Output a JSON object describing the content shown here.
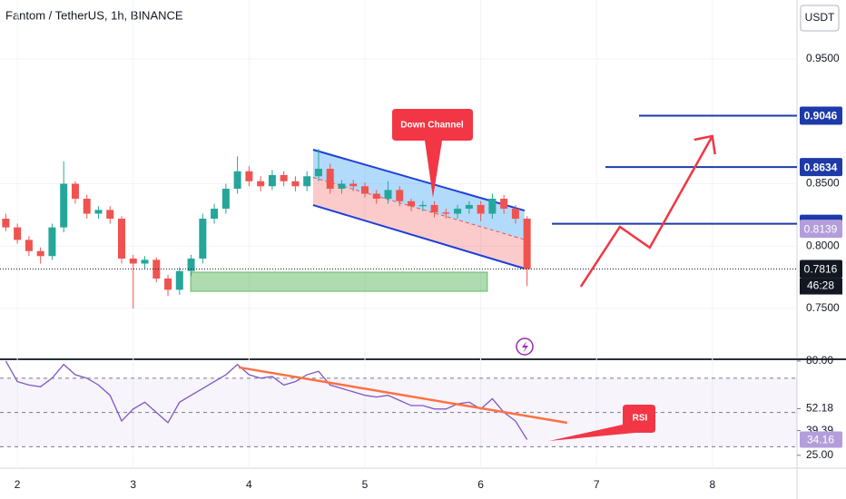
{
  "chart_data": [
    {
      "type": "candlestick",
      "title": "Fantom / TetherUS, 1h, BINANCE",
      "currency": "USDT",
      "x": [
        1.9,
        2.0,
        2.1,
        2.2,
        2.3,
        2.4,
        2.5,
        2.6,
        2.7,
        2.8,
        2.9,
        3.0,
        3.1,
        3.2,
        3.3,
        3.4,
        3.5,
        3.6,
        3.7,
        3.8,
        3.9,
        4.0,
        4.1,
        4.2,
        4.3,
        4.4,
        4.5,
        4.6,
        4.7,
        4.8,
        4.9,
        5.0,
        5.1,
        5.2,
        5.3,
        5.4,
        5.5,
        5.6,
        5.7,
        5.8,
        5.9,
        6.0,
        6.1,
        6.2,
        6.3,
        6.4
      ],
      "open": [
        0.822,
        0.815,
        0.805,
        0.796,
        0.792,
        0.815,
        0.85,
        0.838,
        0.826,
        0.829,
        0.822,
        0.79,
        0.786,
        0.789,
        0.774,
        0.765,
        0.78,
        0.79,
        0.822,
        0.83,
        0.846,
        0.86,
        0.852,
        0.848,
        0.857,
        0.852,
        0.848,
        0.856,
        0.862,
        0.846,
        0.85,
        0.848,
        0.842,
        0.838,
        0.845,
        0.836,
        0.832,
        0.833,
        0.827,
        0.826,
        0.83,
        0.833,
        0.826,
        0.838,
        0.83,
        0.822
      ],
      "high": [
        0.826,
        0.818,
        0.808,
        0.799,
        0.818,
        0.868,
        0.852,
        0.841,
        0.832,
        0.832,
        0.824,
        0.793,
        0.792,
        0.791,
        0.777,
        0.783,
        0.793,
        0.826,
        0.834,
        0.85,
        0.872,
        0.864,
        0.856,
        0.861,
        0.86,
        0.856,
        0.86,
        0.878,
        0.866,
        0.853,
        0.853,
        0.851,
        0.845,
        0.852,
        0.848,
        0.838,
        0.836,
        0.836,
        0.83,
        0.833,
        0.836,
        0.836,
        0.842,
        0.841,
        0.833,
        0.824
      ],
      "low": [
        0.812,
        0.802,
        0.792,
        0.786,
        0.789,
        0.811,
        0.834,
        0.822,
        0.822,
        0.818,
        0.786,
        0.75,
        0.782,
        0.771,
        0.76,
        0.761,
        0.776,
        0.786,
        0.818,
        0.826,
        0.842,
        0.848,
        0.844,
        0.845,
        0.848,
        0.844,
        0.844,
        0.852,
        0.842,
        0.842,
        0.844,
        0.839,
        0.834,
        0.834,
        0.832,
        0.828,
        0.828,
        0.823,
        0.822,
        0.822,
        0.826,
        0.82,
        0.822,
        0.826,
        0.818,
        0.768
      ],
      "close": [
        0.815,
        0.805,
        0.796,
        0.792,
        0.815,
        0.85,
        0.838,
        0.826,
        0.829,
        0.822,
        0.79,
        0.786,
        0.789,
        0.774,
        0.765,
        0.78,
        0.79,
        0.822,
        0.83,
        0.846,
        0.86,
        0.852,
        0.848,
        0.857,
        0.852,
        0.848,
        0.856,
        0.862,
        0.846,
        0.85,
        0.848,
        0.842,
        0.838,
        0.845,
        0.836,
        0.832,
        0.833,
        0.827,
        0.826,
        0.83,
        0.833,
        0.826,
        0.838,
        0.83,
        0.822,
        0.7816
      ],
      "up_color": "#26a69a",
      "down_color": "#ef5350",
      "xlim": [
        1.85,
        8.73
      ],
      "xticks": [
        2,
        3,
        4,
        5,
        6,
        7,
        8
      ],
      "ylim": [
        0.71,
        0.9973
      ],
      "yticks": [
        {
          "value": 0.95,
          "label": "0.9500"
        },
        {
          "value": 0.85,
          "label": "0.8500"
        },
        {
          "value": 0.8,
          "label": "0.8000"
        },
        {
          "value": 0.75,
          "label": "0.7500"
        }
      ],
      "levels": [
        0.9046,
        0.8634,
        0.8179
      ],
      "level_color": "#1e3aa8",
      "ma_price": 0.8139,
      "last_price": 0.7816,
      "countdown": "46:28",
      "channel": {
        "x": [
          4.553,
          6.378
        ],
        "upper": [
          0.8773,
          0.8285
        ],
        "lower": [
          0.8329,
          0.782
        ]
      },
      "zone": {
        "x": [
          3.496,
          6.057
        ],
        "y": [
          0.7638,
          0.7791
        ]
      },
      "arrow": {
        "x": [
          6.864,
          7.201,
          7.459,
          7.999
        ],
        "y": [
          0.7675,
          0.8155,
          0.7988,
          0.8882
        ]
      },
      "annotation": "Down Channel"
    },
    {
      "type": "line",
      "color": "#7e57c2",
      "values": [
        80,
        68,
        66,
        65,
        70,
        78,
        72,
        70,
        66,
        60,
        45,
        52,
        56,
        50,
        44,
        56,
        60,
        64,
        68,
        72,
        78,
        72,
        70,
        71,
        66,
        68,
        72,
        74,
        66,
        64,
        62,
        60,
        59,
        60,
        57,
        54,
        54,
        52,
        52,
        55,
        56,
        52,
        58,
        50,
        45,
        34.16
      ],
      "ylim": [
        18,
        80.5
      ],
      "yticks": [
        {
          "value": 80,
          "label": "80.00"
        },
        52.18,
        39.39,
        {
          "value": 25,
          "label": "25.00"
        }
      ],
      "levels": [
        70,
        50,
        30
      ],
      "last": 34.16,
      "trend": {
        "x": [
          3.911,
          6.746
        ],
        "y": [
          76.3,
          43.95
        ]
      },
      "annotation": "RSI"
    }
  ]
}
